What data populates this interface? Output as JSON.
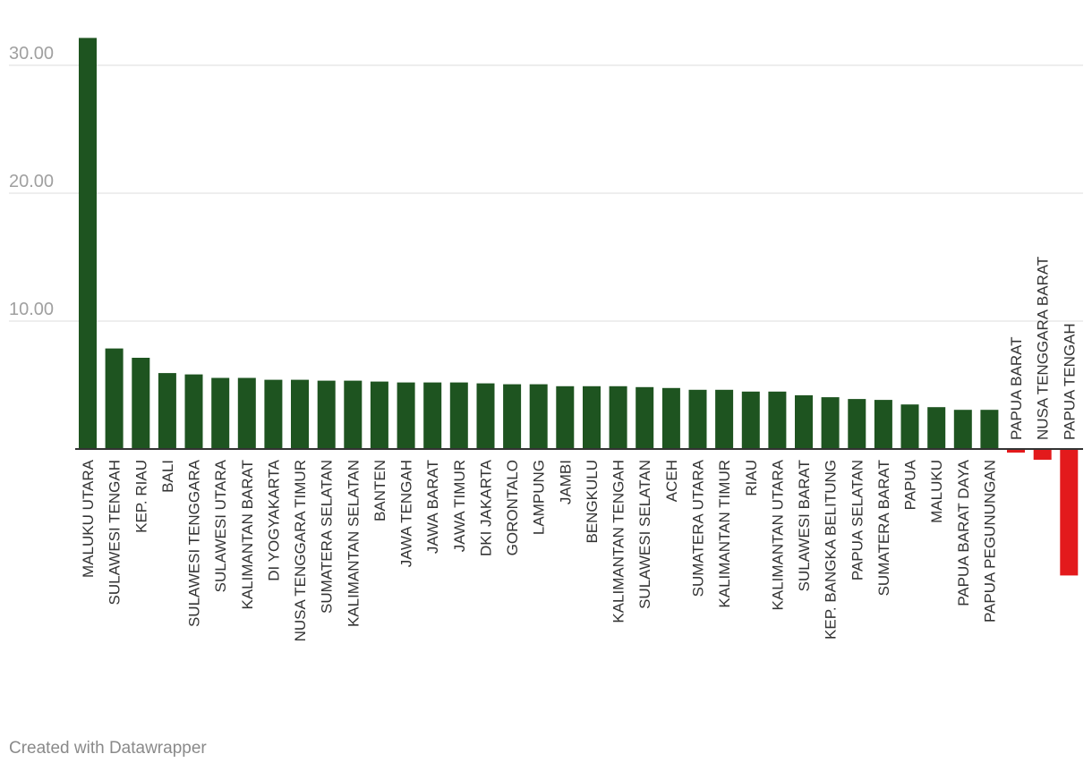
{
  "chart_data": {
    "type": "bar",
    "categories": [
      "MALUKU UTARA",
      "SULAWESI TENGAH",
      "KEP. RIAU",
      "BALI",
      "SULAWESI TENGGARA",
      "SULAWESI UTARA",
      "KALIMANTAN BARAT",
      "DI YOGYAKARTA",
      "NUSA TENGGARA TIMUR",
      "SUMATERA SELATAN",
      "KALIMANTAN SELATAN",
      "BANTEN",
      "JAWA TENGAH",
      "JAWA BARAT",
      "JAWA TIMUR",
      "DKI JAKARTA",
      "GORONTALO",
      "LAMPUNG",
      "JAMBI",
      "BENGKULU",
      "KALIMANTAN TENGAH",
      "SULAWESI SELATAN",
      "ACEH",
      "SUMATERA UTARA",
      "KALIMANTAN TIMUR",
      "RIAU",
      "KALIMANTAN UTARA",
      "SULAWESI BARAT",
      "KEP. BANGKA BELITUNG",
      "PAPUA SELATAN",
      "SUMATERA BARAT",
      "PAPUA",
      "MALUKU",
      "PAPUA BARAT DAYA",
      "PAPUA PEGUNUNGAN",
      "PAPUA BARAT",
      "NUSA TENGGARA BARAT",
      "PAPUA TENGAH"
    ],
    "values": [
      32.14,
      7.86,
      7.13,
      5.94,
      5.83,
      5.56,
      5.56,
      5.41,
      5.41,
      5.34,
      5.34,
      5.27,
      5.2,
      5.2,
      5.2,
      5.13,
      5.06,
      5.06,
      4.91,
      4.91,
      4.91,
      4.84,
      4.77,
      4.63,
      4.63,
      4.49,
      4.49,
      4.2,
      4.05,
      3.91,
      3.84,
      3.48,
      3.27,
      3.06,
      3.06,
      -0.28,
      -0.84,
      -9.89
    ],
    "yticks": [
      "10.00",
      "20.00",
      "30.00"
    ],
    "ylim": [
      -10,
      32.5
    ],
    "grid": true,
    "colors": {
      "positive": "#1e5420",
      "negative": "#e31a1c",
      "grid": "#dddddd",
      "axis": "#333333"
    }
  },
  "footer": {
    "credit": "Created with Datawrapper"
  }
}
